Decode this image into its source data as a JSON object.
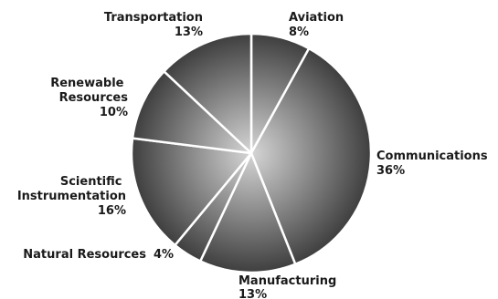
{
  "chart_data": {
    "type": "pie",
    "title": "",
    "slices": [
      {
        "label": "Aviation",
        "value": 8,
        "value_label": "8%"
      },
      {
        "label": "Communications",
        "value": 36,
        "value_label": "36%"
      },
      {
        "label": "Manufacturing",
        "value": 13,
        "value_label": "13%"
      },
      {
        "label": "Natural Resources",
        "value": 4,
        "value_label": "4%"
      },
      {
        "label": "Scientific Instrumentation",
        "value": 16,
        "value_label": "16%"
      },
      {
        "label": "Renewable Resources",
        "value": 10,
        "value_label": "10%"
      },
      {
        "label": "Transportation",
        "value": 13,
        "value_label": "13%"
      }
    ],
    "colors": {
      "slice_light": "#d6d6d6",
      "slice_dark": "#3a3a3a",
      "separator": "#ffffff",
      "label_text": "#1a1a1a"
    }
  }
}
